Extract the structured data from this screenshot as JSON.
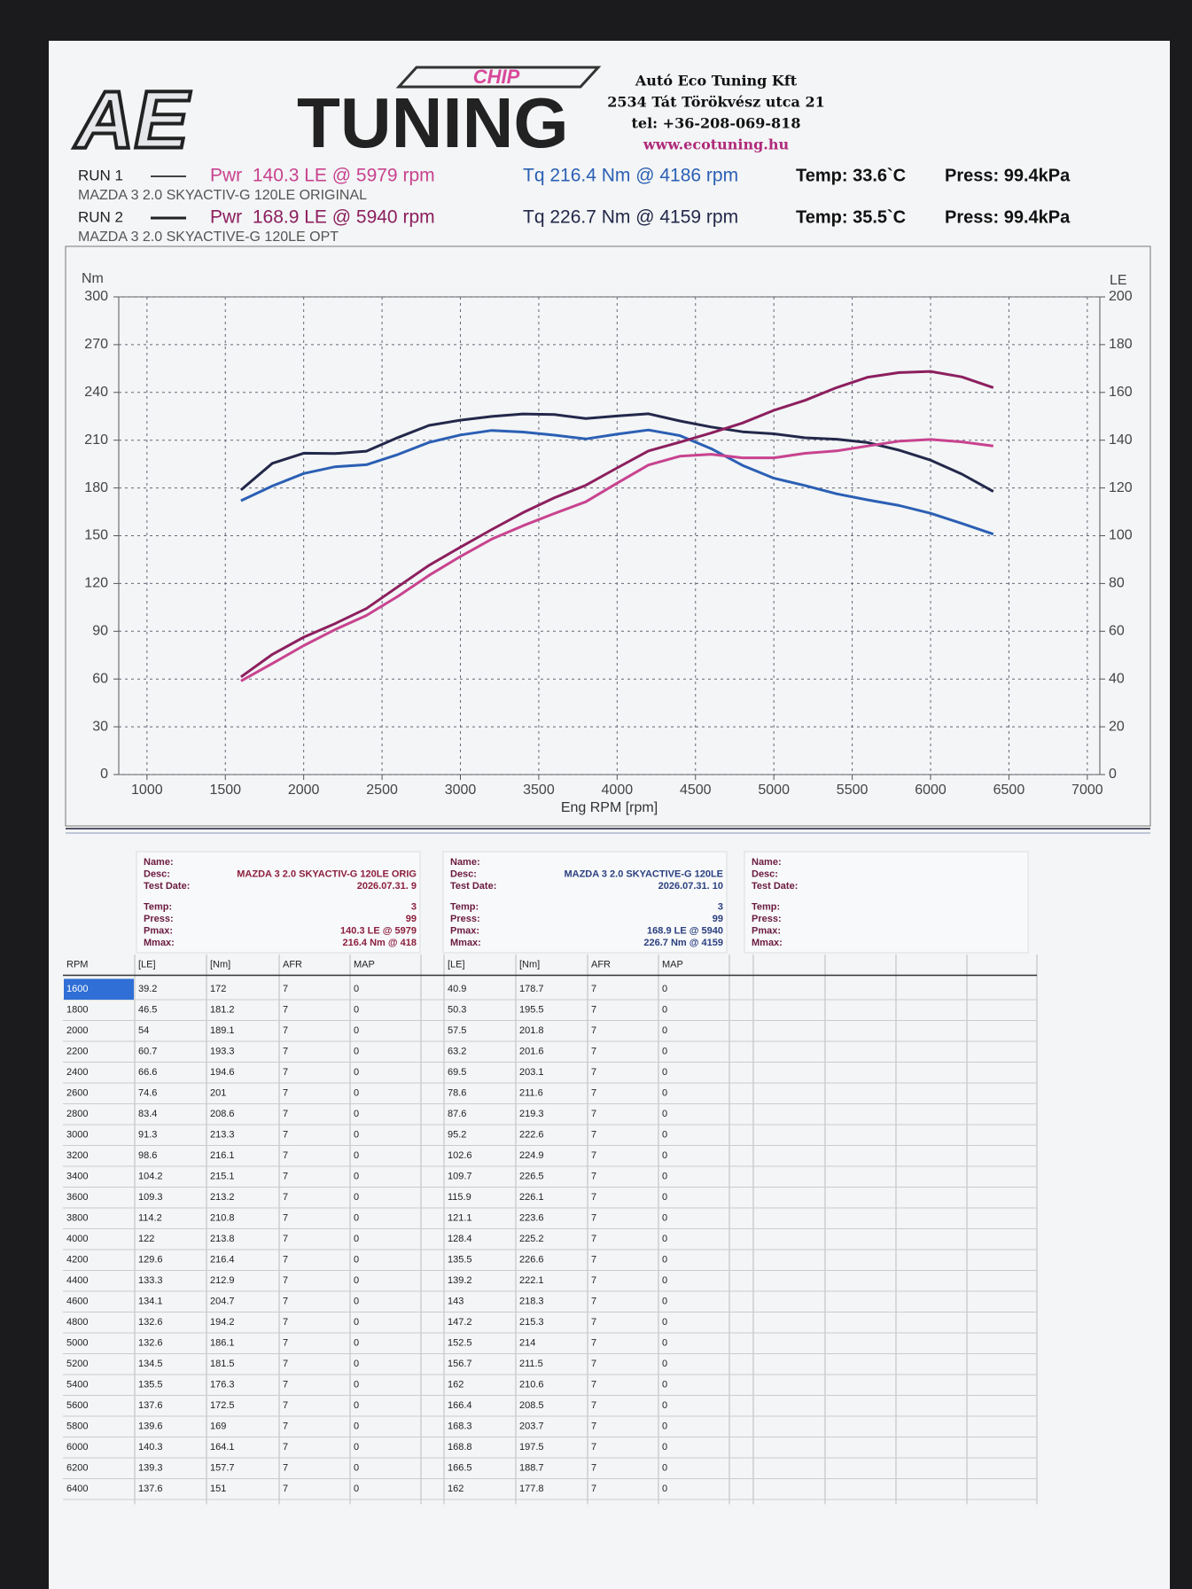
{
  "header": {
    "logo": {
      "ae": "AE",
      "tuning": "TUNING",
      "chip": "CHIP"
    },
    "company": [
      "Autó Eco Tuning Kft",
      "2534 Tát Törökvész utca 21",
      "tel: +36-208-069-818",
      "www.ecotuning.hu"
    ]
  },
  "runs": [
    {
      "label": "RUN 1",
      "power": "Pwr  140.3 LE @ 5979 rpm",
      "torque": "Tq 216.4 Nm @ 4186 rpm",
      "temp": "Temp: 33.6`C",
      "press": "Press: 99.4kPa",
      "desc": "MAZDA 3 2.0 SKYACTIV-G 120LE ORIGINAL"
    },
    {
      "label": "RUN 2",
      "power": "Pwr  168.9 LE @ 5940 rpm",
      "torque": "Tq 226.7 Nm @ 4159 rpm",
      "temp": "Temp: 35.5`C",
      "press": "Press: 99.4kPa",
      "desc": "MAZDA 3 2.0 SKYACTIVE-G 120LE OPT"
    }
  ],
  "chart_data": {
    "type": "line",
    "y_label": "Nm",
    "y2_label": "LE",
    "x_label": "Eng RPM [rpm]",
    "x": [
      1600,
      1800,
      2000,
      2200,
      2400,
      2600,
      2800,
      3000,
      3200,
      3400,
      3600,
      3800,
      4000,
      4200,
      4400,
      4600,
      4800,
      5000,
      5200,
      5400,
      5600,
      5800,
      6000,
      6200,
      6400
    ],
    "xlim": [
      820,
      7080
    ],
    "xticks": [
      1000,
      1500,
      2000,
      2500,
      3000,
      3500,
      4000,
      4500,
      5000,
      5500,
      6000,
      6500,
      7000
    ],
    "ylim": [
      0,
      300
    ],
    "yticks": [
      0,
      30,
      60,
      90,
      120,
      150,
      180,
      210,
      240,
      270,
      300
    ],
    "y2lim": [
      0,
      200
    ],
    "y2ticks": [
      0,
      20,
      40,
      60,
      80,
      100,
      120,
      140,
      160,
      180,
      200
    ],
    "grid": true,
    "series": [
      {
        "color": "#2b5fb4",
        "axis": "y",
        "values": [
          172,
          181.2,
          189.1,
          193.3,
          194.6,
          201,
          208.6,
          213.3,
          216.1,
          215.1,
          213.2,
          210.8,
          213.8,
          216.4,
          212.9,
          204.7,
          194.2,
          186.1,
          181.5,
          176.3,
          172.5,
          169,
          164.1,
          157.7,
          151
        ]
      },
      {
        "color": "#23284a",
        "axis": "y",
        "values": [
          178.7,
          195.5,
          201.8,
          201.6,
          203.1,
          211.6,
          219.3,
          222.6,
          224.9,
          226.5,
          226.1,
          223.6,
          225.2,
          226.6,
          222.1,
          218.3,
          215.3,
          214,
          211.5,
          210.6,
          208.5,
          203.7,
          197.5,
          188.7,
          177.8
        ]
      },
      {
        "color": "#c8438f",
        "axis": "y2",
        "values": [
          39.2,
          46.5,
          54,
          60.7,
          66.6,
          74.6,
          83.4,
          91.3,
          98.6,
          104.2,
          109.3,
          114.2,
          122,
          129.6,
          133.3,
          134.1,
          132.6,
          132.6,
          134.5,
          135.5,
          137.6,
          139.6,
          140.3,
          139.3,
          137.6
        ]
      },
      {
        "color": "#8c1f5e",
        "axis": "y2",
        "values": [
          40.9,
          50.3,
          57.5,
          63.2,
          69.5,
          78.6,
          87.6,
          95.2,
          102.6,
          109.7,
          115.9,
          121.1,
          128.4,
          135.5,
          139.2,
          143,
          147.2,
          152.5,
          156.7,
          162,
          166.4,
          168.3,
          168.8,
          166.5,
          162
        ]
      }
    ]
  },
  "info_boxes": [
    {
      "labels": [
        "Name:",
        "Desc:",
        "Test Date:",
        "Temp:",
        "Press:",
        "Pmax:",
        "Mmax:"
      ],
      "values": {
        "1": "MAZDA 3 2.0 SKYACTIV-G 120LE ORIG",
        "2": "2026.07.31. 9",
        "3": "3",
        "4": "99",
        "5": "140.3 LE @ 5979",
        "6": "216.4 Nm @ 418"
      }
    },
    {
      "labels": [
        "Name:",
        "Desc:",
        "Test Date:",
        "Temp:",
        "Press:",
        "Pmax:",
        "Mmax:"
      ],
      "values": {
        "1": "MAZDA 3 2.0 SKYACTIVE-G 120LE",
        "2": "2026.07.31. 10",
        "3": "3",
        "4": "99",
        "5": "168.9 LE @ 5940",
        "6": "226.7 Nm @ 4159"
      }
    },
    {
      "labels": [
        "Name:",
        "Desc:",
        "Test Date:",
        "Temp:",
        "Press:",
        "Pmax:",
        "Mmax:"
      ]
    }
  ],
  "table": {
    "header": [
      "RPM",
      "[LE]",
      "[Nm]",
      "AFR",
      "MAP",
      "[LE]",
      "[Nm]",
      "AFR",
      "MAP"
    ],
    "rows": [
      [
        "1600",
        "39.2",
        "172",
        "7",
        "0",
        "40.9",
        "178.7",
        "7",
        "0"
      ],
      [
        "1800",
        "46.5",
        "181.2",
        "7",
        "0",
        "50.3",
        "195.5",
        "7",
        "0"
      ],
      [
        "2000",
        "54",
        "189.1",
        "7",
        "0",
        "57.5",
        "201.8",
        "7",
        "0"
      ],
      [
        "2200",
        "60.7",
        "193.3",
        "7",
        "0",
        "63.2",
        "201.6",
        "7",
        "0"
      ],
      [
        "2400",
        "66.6",
        "194.6",
        "7",
        "0",
        "69.5",
        "203.1",
        "7",
        "0"
      ],
      [
        "2600",
        "74.6",
        "201",
        "7",
        "0",
        "78.6",
        "211.6",
        "7",
        "0"
      ],
      [
        "2800",
        "83.4",
        "208.6",
        "7",
        "0",
        "87.6",
        "219.3",
        "7",
        "0"
      ],
      [
        "3000",
        "91.3",
        "213.3",
        "7",
        "0",
        "95.2",
        "222.6",
        "7",
        "0"
      ],
      [
        "3200",
        "98.6",
        "216.1",
        "7",
        "0",
        "102.6",
        "224.9",
        "7",
        "0"
      ],
      [
        "3400",
        "104.2",
        "215.1",
        "7",
        "0",
        "109.7",
        "226.5",
        "7",
        "0"
      ],
      [
        "3600",
        "109.3",
        "213.2",
        "7",
        "0",
        "115.9",
        "226.1",
        "7",
        "0"
      ],
      [
        "3800",
        "114.2",
        "210.8",
        "7",
        "0",
        "121.1",
        "223.6",
        "7",
        "0"
      ],
      [
        "4000",
        "122",
        "213.8",
        "7",
        "0",
        "128.4",
        "225.2",
        "7",
        "0"
      ],
      [
        "4200",
        "129.6",
        "216.4",
        "7",
        "0",
        "135.5",
        "226.6",
        "7",
        "0"
      ],
      [
        "4400",
        "133.3",
        "212.9",
        "7",
        "0",
        "139.2",
        "222.1",
        "7",
        "0"
      ],
      [
        "4600",
        "134.1",
        "204.7",
        "7",
        "0",
        "143",
        "218.3",
        "7",
        "0"
      ],
      [
        "4800",
        "132.6",
        "194.2",
        "7",
        "0",
        "147.2",
        "215.3",
        "7",
        "0"
      ],
      [
        "5000",
        "132.6",
        "186.1",
        "7",
        "0",
        "152.5",
        "214",
        "7",
        "0"
      ],
      [
        "5200",
        "134.5",
        "181.5",
        "7",
        "0",
        "156.7",
        "211.5",
        "7",
        "0"
      ],
      [
        "5400",
        "135.5",
        "176.3",
        "7",
        "0",
        "162",
        "210.6",
        "7",
        "0"
      ],
      [
        "5600",
        "137.6",
        "172.5",
        "7",
        "0",
        "166.4",
        "208.5",
        "7",
        "0"
      ],
      [
        "5800",
        "139.6",
        "169",
        "7",
        "0",
        "168.3",
        "203.7",
        "7",
        "0"
      ],
      [
        "6000",
        "140.3",
        "164.1",
        "7",
        "0",
        "168.8",
        "197.5",
        "7",
        "0"
      ],
      [
        "6200",
        "139.3",
        "157.7",
        "7",
        "0",
        "166.5",
        "188.7",
        "7",
        "0"
      ],
      [
        "6400",
        "137.6",
        "151",
        "7",
        "0",
        "162",
        "177.8",
        "7",
        "0"
      ]
    ]
  }
}
